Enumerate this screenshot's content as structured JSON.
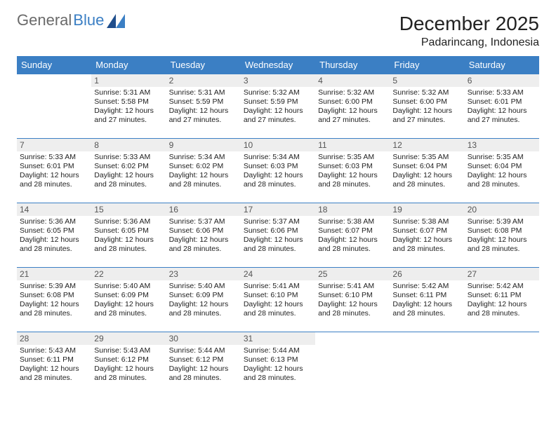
{
  "logo": {
    "word1": "General",
    "word2": "Blue"
  },
  "title": "December 2025",
  "location": "Padarincang, Indonesia",
  "colors": {
    "header_bg": "#3b7fc4",
    "header_fg": "#ffffff",
    "daynum_bg": "#eeeeee",
    "daynum_fg": "#555555",
    "cell_border": "#3b7fc4",
    "text": "#222222",
    "logo_gray": "#6a6a6a",
    "logo_blue": "#3b7fc4",
    "page_bg": "#ffffff"
  },
  "dow": [
    "Sunday",
    "Monday",
    "Tuesday",
    "Wednesday",
    "Thursday",
    "Friday",
    "Saturday"
  ],
  "weeks": [
    [
      null,
      {
        "d": "1",
        "sr": "Sunrise: 5:31 AM",
        "ss": "Sunset: 5:58 PM",
        "dl1": "Daylight: 12 hours",
        "dl2": "and 27 minutes."
      },
      {
        "d": "2",
        "sr": "Sunrise: 5:31 AM",
        "ss": "Sunset: 5:59 PM",
        "dl1": "Daylight: 12 hours",
        "dl2": "and 27 minutes."
      },
      {
        "d": "3",
        "sr": "Sunrise: 5:32 AM",
        "ss": "Sunset: 5:59 PM",
        "dl1": "Daylight: 12 hours",
        "dl2": "and 27 minutes."
      },
      {
        "d": "4",
        "sr": "Sunrise: 5:32 AM",
        "ss": "Sunset: 6:00 PM",
        "dl1": "Daylight: 12 hours",
        "dl2": "and 27 minutes."
      },
      {
        "d": "5",
        "sr": "Sunrise: 5:32 AM",
        "ss": "Sunset: 6:00 PM",
        "dl1": "Daylight: 12 hours",
        "dl2": "and 27 minutes."
      },
      {
        "d": "6",
        "sr": "Sunrise: 5:33 AM",
        "ss": "Sunset: 6:01 PM",
        "dl1": "Daylight: 12 hours",
        "dl2": "and 27 minutes."
      }
    ],
    [
      {
        "d": "7",
        "sr": "Sunrise: 5:33 AM",
        "ss": "Sunset: 6:01 PM",
        "dl1": "Daylight: 12 hours",
        "dl2": "and 28 minutes."
      },
      {
        "d": "8",
        "sr": "Sunrise: 5:33 AM",
        "ss": "Sunset: 6:02 PM",
        "dl1": "Daylight: 12 hours",
        "dl2": "and 28 minutes."
      },
      {
        "d": "9",
        "sr": "Sunrise: 5:34 AM",
        "ss": "Sunset: 6:02 PM",
        "dl1": "Daylight: 12 hours",
        "dl2": "and 28 minutes."
      },
      {
        "d": "10",
        "sr": "Sunrise: 5:34 AM",
        "ss": "Sunset: 6:03 PM",
        "dl1": "Daylight: 12 hours",
        "dl2": "and 28 minutes."
      },
      {
        "d": "11",
        "sr": "Sunrise: 5:35 AM",
        "ss": "Sunset: 6:03 PM",
        "dl1": "Daylight: 12 hours",
        "dl2": "and 28 minutes."
      },
      {
        "d": "12",
        "sr": "Sunrise: 5:35 AM",
        "ss": "Sunset: 6:04 PM",
        "dl1": "Daylight: 12 hours",
        "dl2": "and 28 minutes."
      },
      {
        "d": "13",
        "sr": "Sunrise: 5:35 AM",
        "ss": "Sunset: 6:04 PM",
        "dl1": "Daylight: 12 hours",
        "dl2": "and 28 minutes."
      }
    ],
    [
      {
        "d": "14",
        "sr": "Sunrise: 5:36 AM",
        "ss": "Sunset: 6:05 PM",
        "dl1": "Daylight: 12 hours",
        "dl2": "and 28 minutes."
      },
      {
        "d": "15",
        "sr": "Sunrise: 5:36 AM",
        "ss": "Sunset: 6:05 PM",
        "dl1": "Daylight: 12 hours",
        "dl2": "and 28 minutes."
      },
      {
        "d": "16",
        "sr": "Sunrise: 5:37 AM",
        "ss": "Sunset: 6:06 PM",
        "dl1": "Daylight: 12 hours",
        "dl2": "and 28 minutes."
      },
      {
        "d": "17",
        "sr": "Sunrise: 5:37 AM",
        "ss": "Sunset: 6:06 PM",
        "dl1": "Daylight: 12 hours",
        "dl2": "and 28 minutes."
      },
      {
        "d": "18",
        "sr": "Sunrise: 5:38 AM",
        "ss": "Sunset: 6:07 PM",
        "dl1": "Daylight: 12 hours",
        "dl2": "and 28 minutes."
      },
      {
        "d": "19",
        "sr": "Sunrise: 5:38 AM",
        "ss": "Sunset: 6:07 PM",
        "dl1": "Daylight: 12 hours",
        "dl2": "and 28 minutes."
      },
      {
        "d": "20",
        "sr": "Sunrise: 5:39 AM",
        "ss": "Sunset: 6:08 PM",
        "dl1": "Daylight: 12 hours",
        "dl2": "and 28 minutes."
      }
    ],
    [
      {
        "d": "21",
        "sr": "Sunrise: 5:39 AM",
        "ss": "Sunset: 6:08 PM",
        "dl1": "Daylight: 12 hours",
        "dl2": "and 28 minutes."
      },
      {
        "d": "22",
        "sr": "Sunrise: 5:40 AM",
        "ss": "Sunset: 6:09 PM",
        "dl1": "Daylight: 12 hours",
        "dl2": "and 28 minutes."
      },
      {
        "d": "23",
        "sr": "Sunrise: 5:40 AM",
        "ss": "Sunset: 6:09 PM",
        "dl1": "Daylight: 12 hours",
        "dl2": "and 28 minutes."
      },
      {
        "d": "24",
        "sr": "Sunrise: 5:41 AM",
        "ss": "Sunset: 6:10 PM",
        "dl1": "Daylight: 12 hours",
        "dl2": "and 28 minutes."
      },
      {
        "d": "25",
        "sr": "Sunrise: 5:41 AM",
        "ss": "Sunset: 6:10 PM",
        "dl1": "Daylight: 12 hours",
        "dl2": "and 28 minutes."
      },
      {
        "d": "26",
        "sr": "Sunrise: 5:42 AM",
        "ss": "Sunset: 6:11 PM",
        "dl1": "Daylight: 12 hours",
        "dl2": "and 28 minutes."
      },
      {
        "d": "27",
        "sr": "Sunrise: 5:42 AM",
        "ss": "Sunset: 6:11 PM",
        "dl1": "Daylight: 12 hours",
        "dl2": "and 28 minutes."
      }
    ],
    [
      {
        "d": "28",
        "sr": "Sunrise: 5:43 AM",
        "ss": "Sunset: 6:11 PM",
        "dl1": "Daylight: 12 hours",
        "dl2": "and 28 minutes."
      },
      {
        "d": "29",
        "sr": "Sunrise: 5:43 AM",
        "ss": "Sunset: 6:12 PM",
        "dl1": "Daylight: 12 hours",
        "dl2": "and 28 minutes."
      },
      {
        "d": "30",
        "sr": "Sunrise: 5:44 AM",
        "ss": "Sunset: 6:12 PM",
        "dl1": "Daylight: 12 hours",
        "dl2": "and 28 minutes."
      },
      {
        "d": "31",
        "sr": "Sunrise: 5:44 AM",
        "ss": "Sunset: 6:13 PM",
        "dl1": "Daylight: 12 hours",
        "dl2": "and 28 minutes."
      },
      null,
      null,
      null
    ]
  ]
}
